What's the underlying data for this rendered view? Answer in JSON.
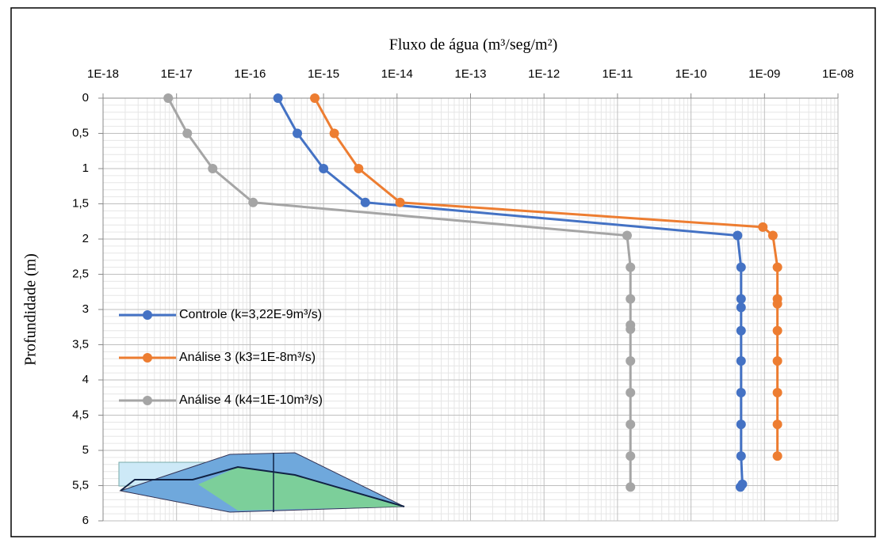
{
  "chart_data": {
    "type": "line",
    "title": "Fluxo de água (m³/seg/m²)",
    "y_label": "Profundidade (m)",
    "x_log": true,
    "y_inverted": true,
    "grid": true,
    "legend": "left",
    "xlim": [
      1e-18,
      1e-08
    ],
    "xticks": [
      {
        "value": 1e-18,
        "label": "1E-18"
      },
      {
        "value": 1e-17,
        "label": "1E-17"
      },
      {
        "value": 1e-16,
        "label": "1E-16"
      },
      {
        "value": 1e-15,
        "label": "1E-15"
      },
      {
        "value": 1e-14,
        "label": "1E-14"
      },
      {
        "value": 1e-13,
        "label": "1E-13"
      },
      {
        "value": 1e-12,
        "label": "1E-12"
      },
      {
        "value": 1e-11,
        "label": "1E-11"
      },
      {
        "value": 1e-10,
        "label": "1E-10"
      },
      {
        "value": 1e-09,
        "label": "1E-09"
      },
      {
        "value": 1e-08,
        "label": "1E-08"
      }
    ],
    "ylim": [
      0,
      6
    ],
    "yticks": [
      0,
      {
        "value": 0.5,
        "label": "0,5"
      },
      1,
      {
        "value": 1.5,
        "label": "1,5"
      },
      2,
      {
        "value": 2.5,
        "label": "2,5"
      },
      3,
      {
        "value": 3.5,
        "label": "3,5"
      },
      4,
      {
        "value": 4.5,
        "label": "4,5"
      },
      5,
      {
        "value": 5.5,
        "label": "5,5"
      },
      6
    ],
    "series": [
      {
        "name": "Controle (k=3,22E-9m³/s)",
        "color": "#4472c4",
        "x": [
          2.4e-16,
          4.4e-16,
          1e-15,
          3.7e-15,
          4.3e-10,
          4.8e-10,
          4.8e-10,
          4.8e-10,
          4.8e-10,
          4.8e-10,
          4.8e-10,
          4.8e-10,
          4.8e-10,
          5e-10,
          4.7e-10
        ],
        "y": [
          0,
          0.5,
          1,
          1.48,
          1.95,
          2.4,
          2.85,
          2.97,
          3.3,
          3.73,
          4.18,
          4.63,
          5.08,
          5.48,
          5.52
        ]
      },
      {
        "name": "Análise 3  (k3=1E-8m³/s)",
        "color": "#ed7d31",
        "x": [
          7.6e-16,
          1.4e-15,
          3e-15,
          1.1e-14,
          9.5e-10,
          1.3e-09,
          1.5e-09,
          1.5e-09,
          1.5e-09,
          1.5e-09,
          1.5e-09,
          1.5e-09,
          1.5e-09,
          1.5e-09
        ],
        "y": [
          0,
          0.5,
          1,
          1.48,
          1.83,
          1.95,
          2.4,
          2.85,
          2.92,
          3.3,
          3.73,
          4.18,
          4.63,
          5.08
        ]
      },
      {
        "name": "Análise 4  (k4=1E-10m³/s)",
        "color": "#a5a5a5",
        "x": [
          7.7e-18,
          1.4e-17,
          3.1e-17,
          1.1e-16,
          1.35e-11,
          1.5e-11,
          1.5e-11,
          1.5e-11,
          1.5e-11,
          1.5e-11,
          1.5e-11,
          1.5e-11,
          1.5e-11,
          1.5e-11
        ],
        "y": [
          0,
          0.5,
          1,
          1.48,
          1.95,
          2.4,
          2.85,
          3.22,
          3.28,
          3.73,
          4.18,
          4.63,
          5.08,
          5.52
        ]
      }
    ]
  }
}
